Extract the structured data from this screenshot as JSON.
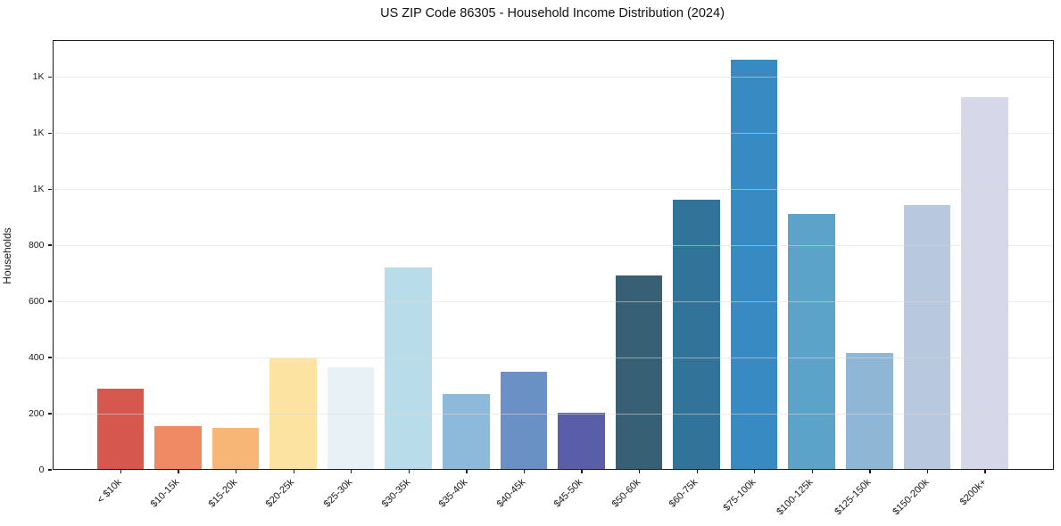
{
  "title": "US ZIP Code 86305 - Household Income Distribution (2024)",
  "chart_data": {
    "type": "bar",
    "title": "US ZIP Code 86305 - Household Income Distribution (2024)",
    "xlabel": "",
    "ylabel": "Households",
    "categories": [
      "< $10k",
      "$10-15k",
      "$15-20k",
      "$20-25k",
      "$25-30k",
      "$30-35k",
      "$35-40k",
      "$40-45k",
      "$45-50k",
      "$50-60k",
      "$60-75k",
      "$75-100k",
      "$100-125k",
      "$125-150k",
      "$150-200k",
      "$200k+"
    ],
    "values": [
      287,
      153,
      146,
      395,
      361,
      718,
      268,
      347,
      200,
      691,
      959,
      1458,
      910,
      414,
      940,
      1324
    ],
    "bar_colors": [
      "#d5574e",
      "#f08a64",
      "#f8b676",
      "#fce3a2",
      "#e7f1f6",
      "#b9dcea",
      "#8db9da",
      "#6b90c6",
      "#5a5ea9",
      "#386074",
      "#32739a",
      "#388ac2",
      "#5ba3c9",
      "#90b6d6",
      "#b8c8df",
      "#d6d7e8"
    ],
    "ylim": [
      0,
      1531
    ],
    "ytick_values": [
      0,
      200,
      400,
      600,
      800,
      1000,
      1200,
      1400
    ],
    "ytick_labels": [
      "0",
      "200",
      "400",
      "600",
      "800",
      "1K",
      "1K",
      "1K"
    ],
    "grid": "horizontal gridlines on",
    "legend_position": "none",
    "background_color": "#ffffff",
    "axis_color": "#1a1a1a"
  }
}
